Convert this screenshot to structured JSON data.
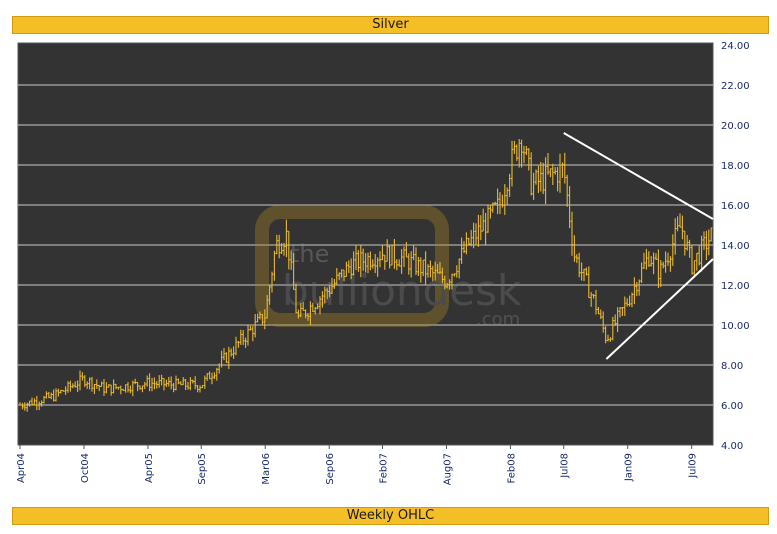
{
  "header": {
    "title": "Silver"
  },
  "footer": {
    "label": "Weekly OHLC"
  },
  "watermark": {
    "word1": "the",
    "word2": "bullion",
    "word3": "desk",
    "suffix": ".com"
  },
  "colors": {
    "plot_bg": "#333333",
    "bars": "#e8b830",
    "grid": "#c8c8c8",
    "trend": "#ffffff",
    "accent": "#f4be27"
  },
  "chart_data": {
    "type": "ohlc",
    "title": "Silver",
    "xlabel": "Weekly OHLC",
    "ylabel": "",
    "ylim": [
      4.0,
      24.0
    ],
    "y_ticks": [
      "4.00",
      "6.00",
      "8.00",
      "10.00",
      "12.00",
      "14.00",
      "16.00",
      "18.00",
      "20.00",
      "22.00",
      "24.00"
    ],
    "x_ticks": [
      "Apr04",
      "Oct04",
      "Apr05",
      "Sep05",
      "Mar06",
      "Sep06",
      "Feb07",
      "Aug07",
      "Feb08",
      "Jul08",
      "Jan09",
      "Jul09"
    ],
    "grid": true,
    "trendlines": [
      {
        "from": [
          "Jul08",
          19.6
        ],
        "to": [
          "Sep09",
          15.3
        ]
      },
      {
        "from": [
          "Nov08",
          8.3
        ],
        "to": [
          "Sep09",
          13.3
        ]
      }
    ],
    "x_range": [
      "Apr04",
      "Sep09"
    ],
    "price_path": [
      [
        "Apr04",
        6.0
      ],
      [
        "Jul04",
        6.4
      ],
      [
        "Oct04",
        7.3
      ],
      [
        "Dec04",
        6.8
      ],
      [
        "Apr05",
        7.1
      ],
      [
        "Jul05",
        7.0
      ],
      [
        "Sep05",
        7.0
      ],
      [
        "Dec05",
        8.8
      ],
      [
        "Mar06",
        10.5
      ],
      [
        "Apr06",
        14.0
      ],
      [
        "May06",
        14.5
      ],
      [
        "Jun06",
        10.3
      ],
      [
        "Sep06",
        11.8
      ],
      [
        "Nov06",
        13.0
      ],
      [
        "Feb07",
        13.6
      ],
      [
        "Apr07",
        13.3
      ],
      [
        "Aug07",
        12.2
      ],
      [
        "Oct07",
        14.0
      ],
      [
        "Jan08",
        16.0
      ],
      [
        "Feb08",
        18.0
      ],
      [
        "Mar08",
        19.5
      ],
      [
        "Apr08",
        17.0
      ],
      [
        "Jul08",
        17.8
      ],
      [
        "Aug08",
        13.5
      ],
      [
        "Oct08",
        11.0
      ],
      [
        "Nov08",
        9.3
      ],
      [
        "Jan09",
        11.2
      ],
      [
        "Mar09",
        13.5
      ],
      [
        "Apr09",
        12.6
      ],
      [
        "Jun09",
        15.0
      ],
      [
        "Jul09",
        13.0
      ],
      [
        "Sep09",
        14.6
      ]
    ]
  }
}
